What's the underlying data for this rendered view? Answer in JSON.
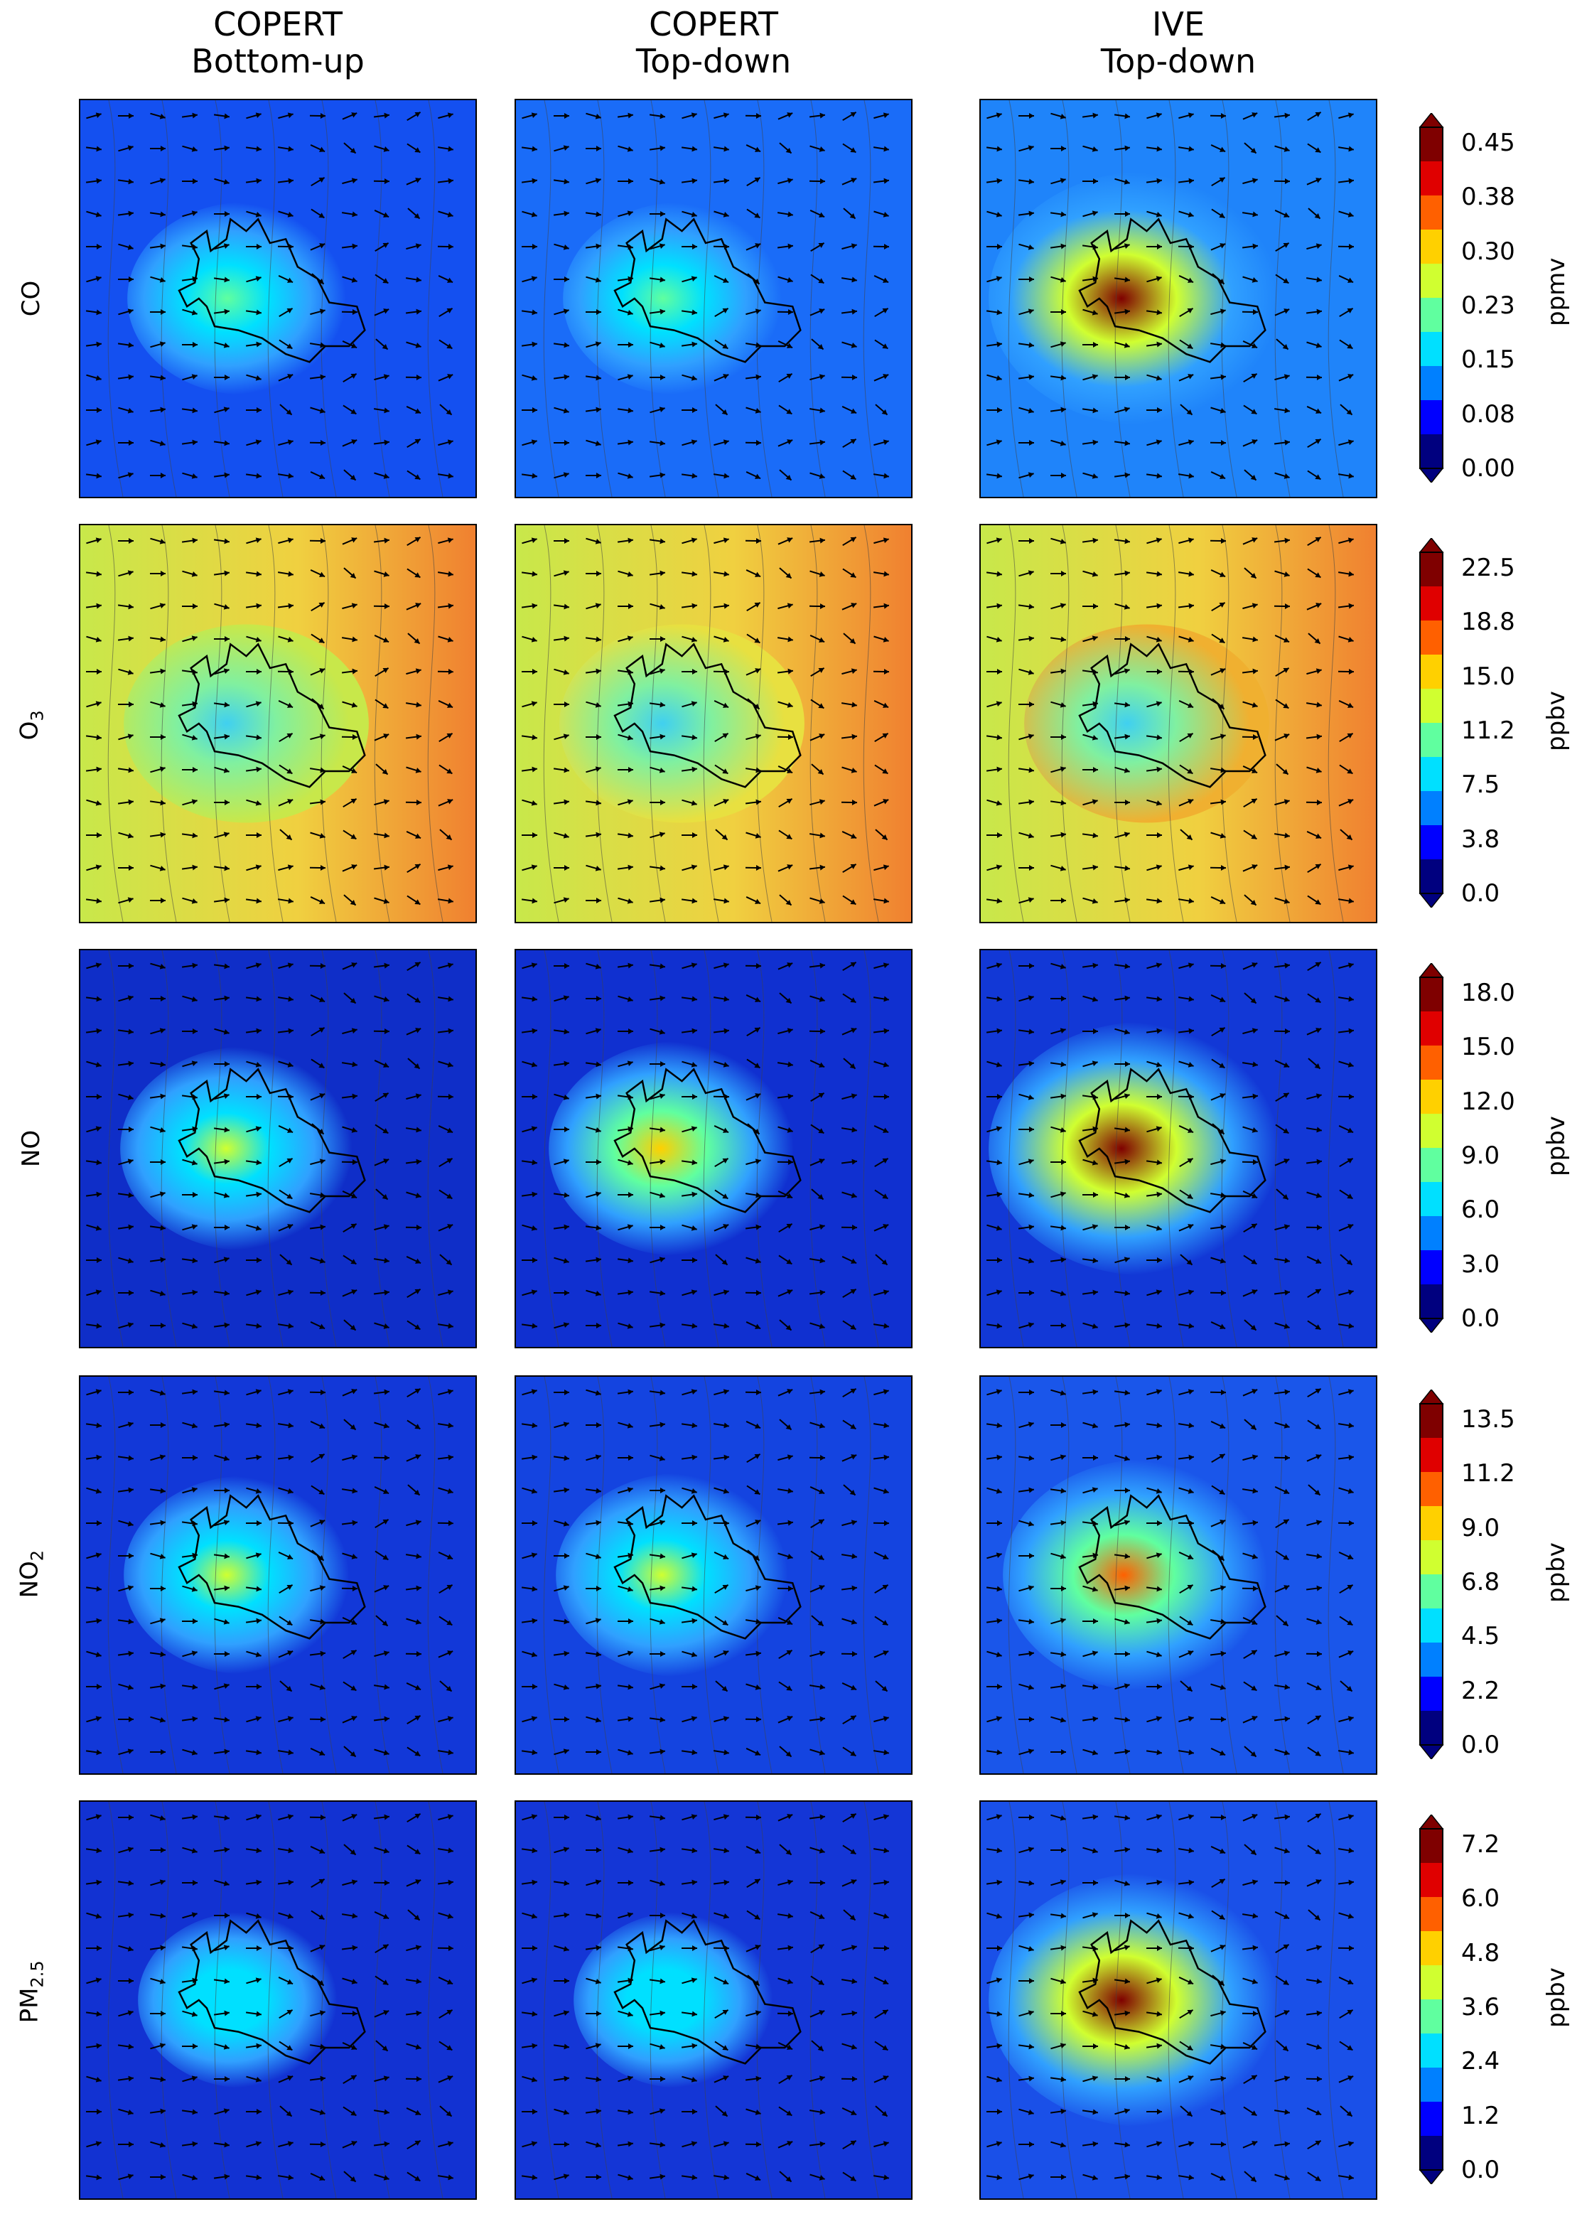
{
  "columns": [
    {
      "line1": "COPERT",
      "line2": "Bottom-up"
    },
    {
      "line1": "COPERT",
      "line2": "Top-down"
    },
    {
      "line1": "IVE",
      "line2": "Top-down"
    }
  ],
  "rows": [
    {
      "id": "co",
      "label": "CO",
      "sub": "",
      "unit": "ppmv",
      "ticks": [
        "0.45",
        "0.38",
        "0.30",
        "0.23",
        "0.15",
        "0.08",
        "0.00"
      ],
      "background": [
        "#1450f0",
        "#1a6cf8",
        "#1f84fa"
      ],
      "plume": [
        {
          "intensity": 0.45
        },
        {
          "intensity": 0.45
        },
        {
          "intensity": 1.0
        }
      ]
    },
    {
      "id": "o3",
      "label": "O",
      "sub": "3",
      "unit": "ppbv",
      "ticks": [
        "22.5",
        "18.8",
        "15.0",
        "11.2",
        "7.5",
        "3.8",
        "0.0"
      ],
      "background": [
        "#c8e84a",
        "#e8e040",
        "#f0b030"
      ],
      "plume": [
        {
          "intensity": 0.5
        },
        {
          "intensity": 0.5
        },
        {
          "intensity": 0.5
        }
      ]
    },
    {
      "id": "no",
      "label": "NO",
      "sub": "",
      "unit": "ppbv",
      "ticks": [
        "18.0",
        "15.0",
        "12.0",
        "9.0",
        "6.0",
        "3.0",
        "0.0"
      ],
      "background": [
        "#0f2ec8",
        "#1030d0",
        "#1238d6"
      ],
      "plume": [
        {
          "intensity": 0.55
        },
        {
          "intensity": 0.65
        },
        {
          "intensity": 1.0
        }
      ]
    },
    {
      "id": "no2",
      "label": "NO",
      "sub": "2",
      "unit": "ppbv",
      "ticks": [
        "13.5",
        "11.2",
        "9.0",
        "6.8",
        "4.5",
        "2.2",
        "0.0"
      ],
      "background": [
        "#1238d8",
        "#1444e0",
        "#1a56ea"
      ],
      "plume": [
        {
          "intensity": 0.5
        },
        {
          "intensity": 0.55
        },
        {
          "intensity": 0.8
        }
      ]
    },
    {
      "id": "pm25",
      "label": "PM",
      "sub": "2.5",
      "unit": "ppbv",
      "ticks": [
        "7.2",
        "6.0",
        "4.8",
        "3.6",
        "2.4",
        "1.2",
        "0.0"
      ],
      "background": [
        "#1232d2",
        "#1436d6",
        "#1a50e8"
      ],
      "plume": [
        {
          "intensity": 0.3
        },
        {
          "intensity": 0.3
        },
        {
          "intensity": 1.0
        }
      ]
    }
  ],
  "colors": {
    "jet": [
      "#00007f",
      "#0000ff",
      "#0080ff",
      "#00e0ff",
      "#60ff9f",
      "#d0ff30",
      "#ffd000",
      "#ff6000",
      "#e00000",
      "#7f0000"
    ]
  }
}
